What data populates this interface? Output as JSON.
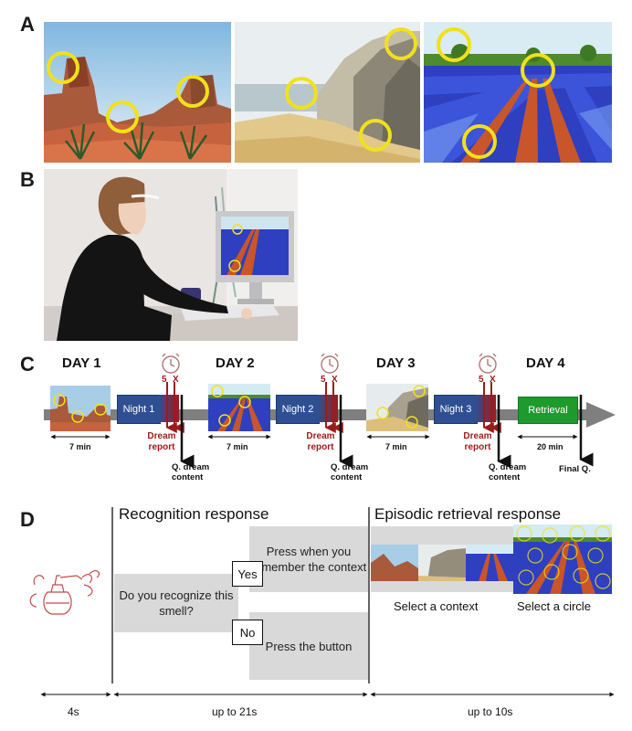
{
  "panels": {
    "a": "A",
    "b": "B",
    "c": "C",
    "d": "D"
  },
  "timeline": {
    "days": [
      "DAY 1",
      "DAY 2",
      "DAY 3",
      "DAY 4"
    ],
    "nights": [
      "Night 1",
      "Night 2",
      "Night 3"
    ],
    "retrieval": "Retrieval",
    "clock_labels": [
      "5",
      "X"
    ],
    "dream_report": "Dream report",
    "q_dream": "Q. dream content",
    "durations": [
      "7 min",
      "7 min",
      "7 min",
      "20 min"
    ],
    "final_q": "Final Q."
  },
  "procedure": {
    "recognition_heading": "Recognition response",
    "episodic_heading": "Episodic retrieval response",
    "question": "Do you recognize this smell?",
    "yes": "Yes",
    "no": "No",
    "press_remember": "Press when you remember the context",
    "press_button": "Press the button",
    "select_context": "Select a context",
    "select_circle": "Select a circle",
    "times": [
      "4s",
      "up to 21s",
      "up to 10s"
    ]
  },
  "colors": {
    "night": "#2f4f93",
    "retrieval": "#1f9a2c",
    "dream": "#9b1b1b",
    "circle": "#f1e11b",
    "box": "#d9d9d9"
  }
}
